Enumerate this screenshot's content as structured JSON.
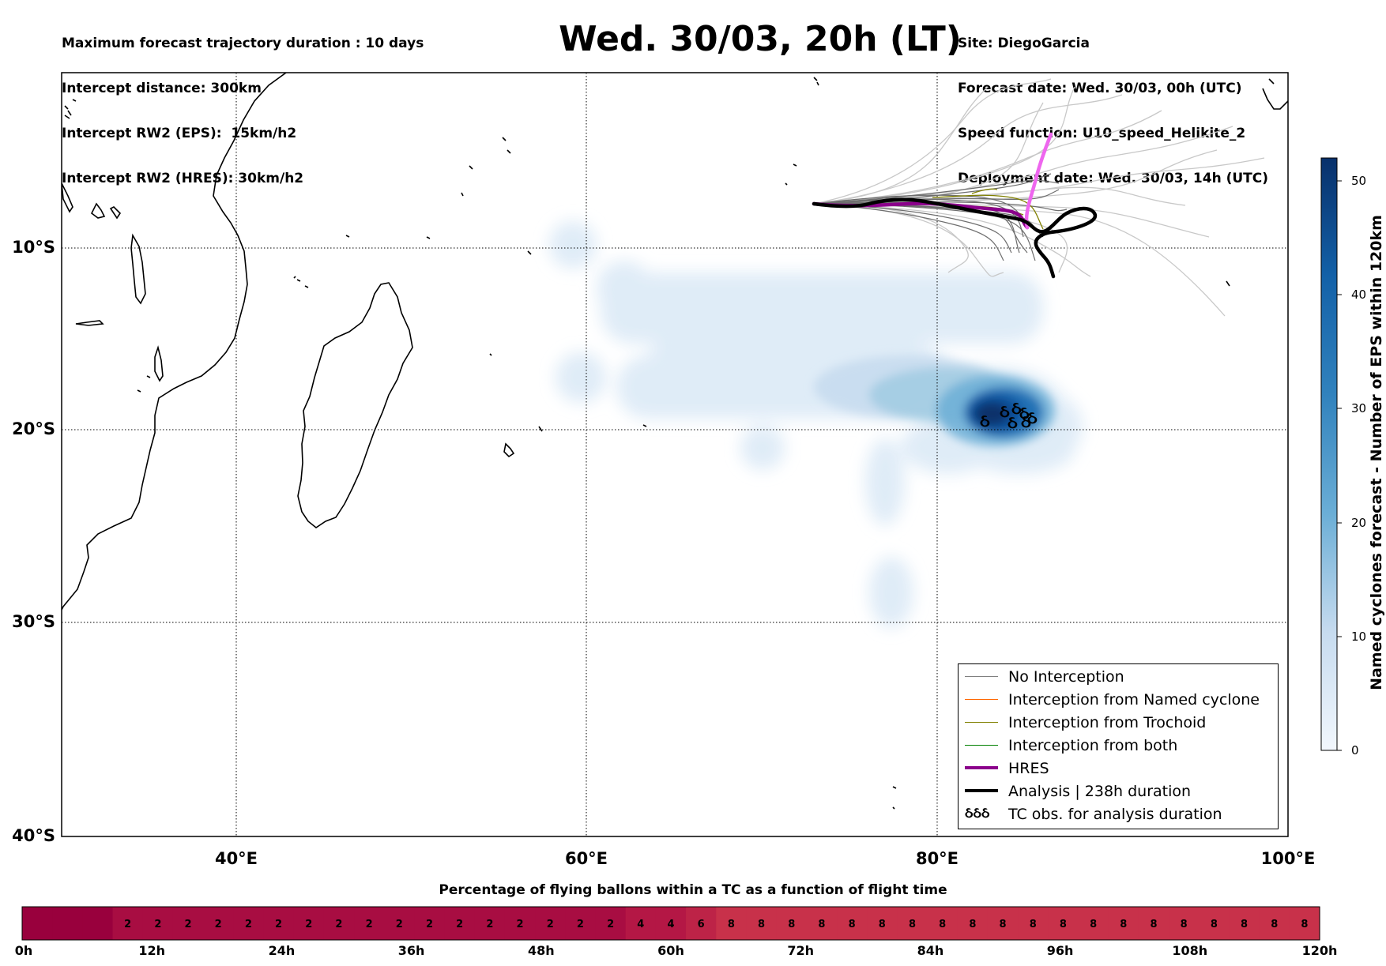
{
  "header": {
    "left_lines": [
      "Maximum forecast trajectory duration : 10 days",
      "Intercept distance: 300km",
      "Intercept RW2 (EPS):  15km/h2",
      "Intercept RW2 (HRES): 30km/h2"
    ],
    "title": "Wed. 30/03, 20h (LT)",
    "right_lines": [
      "Site: DiegoGarcia",
      "Forecast date: Wed. 30/03, 00h (UTC)",
      "Speed function: U10_speed_Helikite_2",
      "Deployment date: Wed. 30/03, 14h (UTC)"
    ]
  },
  "map": {
    "lon_range": [
      30,
      100
    ],
    "lat_range_south": [
      0,
      40
    ],
    "lat_ticks": [
      "10°S",
      "20°S",
      "30°S",
      "40°S"
    ],
    "lon_ticks": [
      "40°E",
      "60°E",
      "80°E",
      "100°E"
    ],
    "colors": {
      "no_interception": "#808080",
      "named_cyclone": "#ff6600",
      "trochoid": "#808000",
      "both": "#008000",
      "hres": "#8b008b",
      "hres_light": "#ee66ee",
      "analysis": "#000000",
      "density_low": "#dfeaf6",
      "density_high": "#08306b"
    }
  },
  "legend": {
    "items": [
      {
        "label": "No Interception",
        "color": "#808080",
        "style": "thin"
      },
      {
        "label": "Interception from Named cyclone",
        "color": "#ff6600",
        "style": "thin"
      },
      {
        "label": "Interception from Trochoid",
        "color": "#808000",
        "style": "thin"
      },
      {
        "label": "Interception from both",
        "color": "#008000",
        "style": "thin"
      },
      {
        "label": "HRES",
        "color": "#8b008b",
        "style": "thick"
      },
      {
        "label": "Analysis | 238h duration",
        "color": "#000000",
        "style": "thick"
      },
      {
        "label": "TC obs. for analysis duration",
        "color": "#000000",
        "style": "symbol",
        "symbol": "ઠઠઠ"
      }
    ]
  },
  "colorbar": {
    "title": "Named cyclones forecast - Number of EPS within 120km",
    "ticks": [
      "0",
      "10",
      "20",
      "30",
      "40",
      "50"
    ],
    "range": [
      0,
      52
    ]
  },
  "bottom_bar": {
    "title": "Percentage of flying ballons within a TC as a function of flight time",
    "hour_labels": [
      "0h",
      "12h",
      "24h",
      "36h",
      "48h",
      "60h",
      "72h",
      "84h",
      "96h",
      "108h",
      "120h"
    ],
    "cells": [
      "",
      "",
      "",
      "2",
      "2",
      "2",
      "2",
      "2",
      "2",
      "2",
      "2",
      "2",
      "2",
      "2",
      "2",
      "2",
      "2",
      "2",
      "2",
      "2",
      "4",
      "4",
      "6",
      "8",
      "8",
      "8",
      "8",
      "8",
      "8",
      "8",
      "8",
      "8",
      "8",
      "8",
      "8",
      "8",
      "8",
      "8",
      "8",
      "8",
      "8",
      "8",
      "8"
    ],
    "colors": {
      "0": "#99003d",
      "2": "#a80d42",
      "4": "#b41745",
      "6": "#bd2347",
      "8": "#c8314a"
    }
  }
}
